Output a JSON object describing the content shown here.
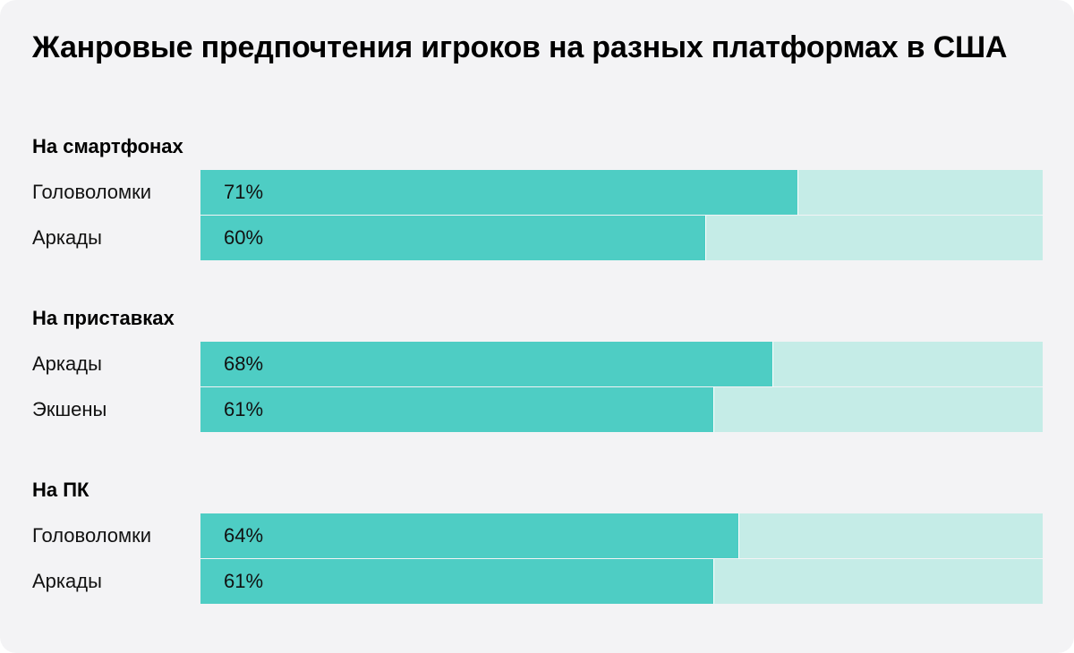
{
  "colors": {
    "background": "#f3f3f5",
    "bar_fill": "#4ecdc4",
    "bar_track": "#c5ece7"
  },
  "chart_data": {
    "type": "bar",
    "orientation": "horizontal",
    "title": "Жанровые предпочтения игроков на разных платформах в США",
    "xlim": [
      0,
      100
    ],
    "grid": false,
    "groups": [
      {
        "name": "На смартфонах",
        "rows": [
          {
            "label": "Головоломки",
            "value": 71,
            "value_label": "71%"
          },
          {
            "label": "Аркады",
            "value": 60,
            "value_label": "60%"
          }
        ]
      },
      {
        "name": "На приставках",
        "rows": [
          {
            "label": "Аркады",
            "value": 68,
            "value_label": "68%"
          },
          {
            "label": "Экшены",
            "value": 61,
            "value_label": "61%"
          }
        ]
      },
      {
        "name": "На ПК",
        "rows": [
          {
            "label": "Головоломки",
            "value": 64,
            "value_label": "64%"
          },
          {
            "label": "Аркады",
            "value": 61,
            "value_label": "61%"
          }
        ]
      }
    ]
  }
}
